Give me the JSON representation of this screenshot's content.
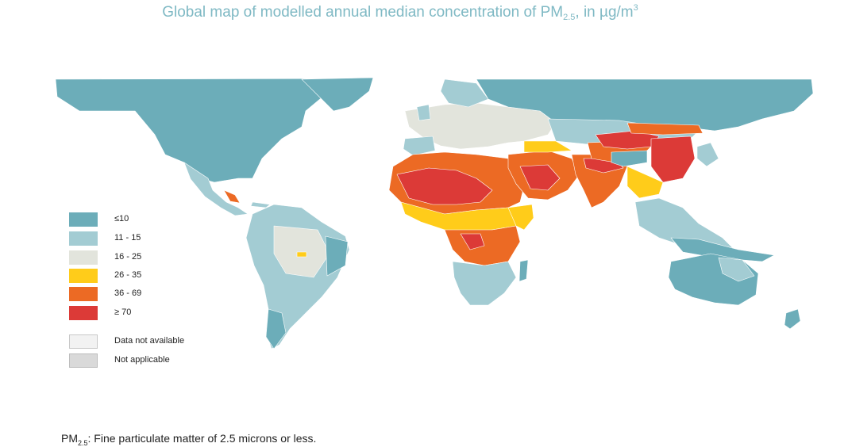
{
  "title": {
    "prefix": "Global map of modelled annual median concentration of PM",
    "sub": "2.5",
    "middle": ", in µg/m",
    "sup": "3"
  },
  "legend": [
    {
      "label": "≤10",
      "color": "#6cadb9"
    },
    {
      "label": "11 - 15",
      "color": "#a3ccd3"
    },
    {
      "label": "16 - 25",
      "color": "#e2e4dc"
    },
    {
      "label": "26 - 35",
      "color": "#ffcc1a"
    },
    {
      "label": "36 - 69",
      "color": "#ec6a24"
    },
    {
      "label": "≥ 70",
      "color": "#dc3a37"
    },
    {
      "label": "Data not available",
      "color": "#f2f2f2"
    },
    {
      "label": "Not applicable",
      "color": "#d9d9d9"
    }
  ],
  "footnote": {
    "prefix": "PM",
    "sub": "2.5",
    "text": ": Fine particulate matter of 2.5 microns or less."
  }
}
